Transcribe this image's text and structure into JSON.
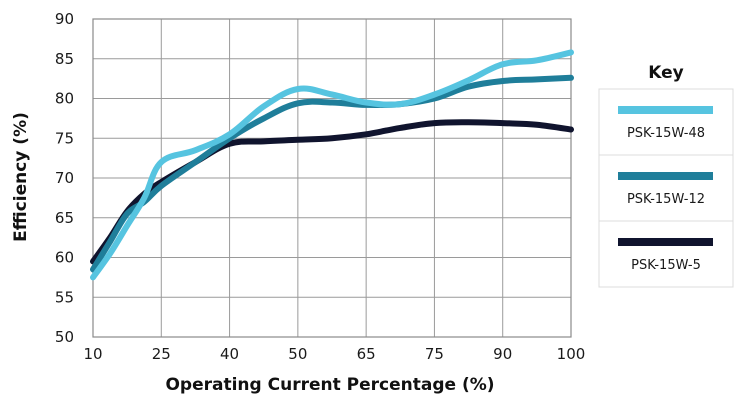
{
  "chart_data": {
    "type": "line",
    "title": "",
    "xlabel": "Operating Current Percentage (%)",
    "ylabel": "Efficiency (%)",
    "x_tick_labels": [
      "10",
      "25",
      "40",
      "50",
      "65",
      "75",
      "90",
      "100"
    ],
    "y_ticks": [
      50,
      55,
      60,
      65,
      70,
      75,
      80,
      85,
      90
    ],
    "ylim": [
      50,
      90
    ],
    "grid": true,
    "legend": {
      "title": "Key",
      "placement": "right"
    },
    "x_category_index": [
      0,
      1,
      2,
      3,
      4,
      5,
      6,
      7
    ],
    "series": [
      {
        "name": "PSK-15W-48",
        "color": "#56c4e0",
        "points": [
          {
            "x": 0,
            "y": 57.5
          },
          {
            "x": 0.25,
            "y": 60.5
          },
          {
            "x": 0.5,
            "y": 64
          },
          {
            "x": 0.75,
            "y": 67.5
          },
          {
            "x": 1.0,
            "y": 72
          },
          {
            "x": 1.5,
            "y": 73.5
          },
          {
            "x": 2.0,
            "y": 75.5
          },
          {
            "x": 2.5,
            "y": 79
          },
          {
            "x": 3.0,
            "y": 81.2
          },
          {
            "x": 3.5,
            "y": 80.5
          },
          {
            "x": 4.0,
            "y": 79.5
          },
          {
            "x": 4.5,
            "y": 79.3
          },
          {
            "x": 5.0,
            "y": 80.5
          },
          {
            "x": 5.5,
            "y": 82.3
          },
          {
            "x": 6.0,
            "y": 84.3
          },
          {
            "x": 6.5,
            "y": 84.8
          },
          {
            "x": 7.0,
            "y": 85.8
          }
        ]
      },
      {
        "name": "PSK-15W-12",
        "color": "#1f7e9a",
        "points": [
          {
            "x": 0,
            "y": 58.5
          },
          {
            "x": 0.25,
            "y": 62
          },
          {
            "x": 0.5,
            "y": 65.5
          },
          {
            "x": 0.75,
            "y": 67
          },
          {
            "x": 1.0,
            "y": 69
          },
          {
            "x": 1.5,
            "y": 72
          },
          {
            "x": 2.0,
            "y": 75
          },
          {
            "x": 2.5,
            "y": 77.5
          },
          {
            "x": 3.0,
            "y": 79.4
          },
          {
            "x": 3.5,
            "y": 79.5
          },
          {
            "x": 4.0,
            "y": 79.2
          },
          {
            "x": 4.5,
            "y": 79.3
          },
          {
            "x": 5.0,
            "y": 80
          },
          {
            "x": 5.5,
            "y": 81.5
          },
          {
            "x": 6.0,
            "y": 82.2
          },
          {
            "x": 6.5,
            "y": 82.4
          },
          {
            "x": 7.0,
            "y": 82.6
          }
        ]
      },
      {
        "name": "PSK-15W-5",
        "color": "#10142e",
        "points": [
          {
            "x": 0,
            "y": 59.5
          },
          {
            "x": 0.25,
            "y": 62.5
          },
          {
            "x": 0.5,
            "y": 65.8
          },
          {
            "x": 0.75,
            "y": 68
          },
          {
            "x": 1.0,
            "y": 69.5
          },
          {
            "x": 1.5,
            "y": 72
          },
          {
            "x": 2.0,
            "y": 74.3
          },
          {
            "x": 2.5,
            "y": 74.6
          },
          {
            "x": 3.0,
            "y": 74.8
          },
          {
            "x": 3.5,
            "y": 75
          },
          {
            "x": 4.0,
            "y": 75.5
          },
          {
            "x": 4.5,
            "y": 76.3
          },
          {
            "x": 5.0,
            "y": 76.9
          },
          {
            "x": 5.5,
            "y": 77
          },
          {
            "x": 6.0,
            "y": 76.9
          },
          {
            "x": 6.5,
            "y": 76.7
          },
          {
            "x": 7.0,
            "y": 76.1
          }
        ]
      }
    ]
  }
}
